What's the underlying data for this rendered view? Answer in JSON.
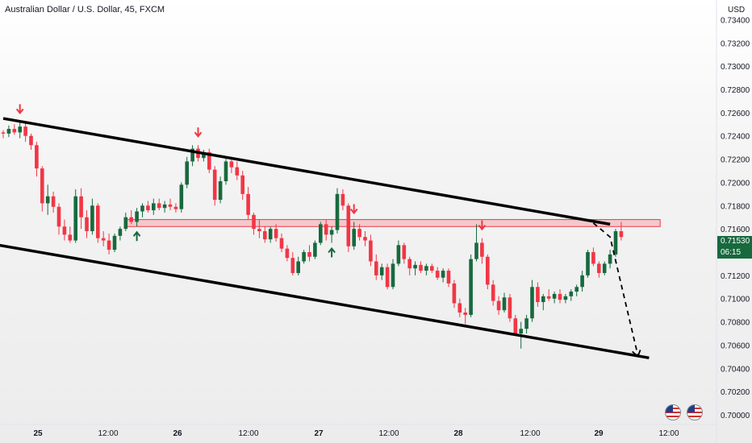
{
  "header": {
    "title": "Australian Dollar / U.S. Dollar, 45, FXCM",
    "unit": "USD"
  },
  "price_tag": {
    "price": "0.71530",
    "countdown": "06:15"
  },
  "colors": {
    "up": "#18693e",
    "down": "#f23645",
    "zone": "#f23645",
    "line": "#000000"
  },
  "icons": [
    "down-arrow-icon",
    "up-arrow-icon",
    "us-flag-icon"
  ],
  "chart_data": {
    "type": "candlestick",
    "ylim": [
      0.7,
      0.735
    ],
    "ytick_labels": [
      "0.73400",
      "0.73200",
      "0.73000",
      "0.72800",
      "0.72600",
      "0.72400",
      "0.72200",
      "0.72000",
      "0.71800",
      "0.71600",
      "0.71400",
      "0.71200",
      "0.71000",
      "0.70800",
      "0.70600",
      "0.70400",
      "0.70200",
      "0.70000"
    ],
    "xtick_labels": [
      "25",
      "12:00",
      "26",
      "12:00",
      "27",
      "12:00",
      "28",
      "12:00",
      "29",
      "12:00"
    ],
    "resistance_zone": [
      0.7162,
      0.7168
    ],
    "channel_upper": [
      [
        0,
        0.7255
      ],
      [
        109,
        0.7164
      ]
    ],
    "channel_lower": [
      [
        -2,
        0.7147
      ],
      [
        116,
        0.7049
      ]
    ],
    "projection": [
      [
        106,
        0.7165
      ],
      [
        109,
        0.7153
      ],
      [
        114,
        0.7051
      ]
    ],
    "down_arrows": [
      3,
      35,
      63,
      86
    ],
    "up_arrows": [
      24,
      59
    ],
    "candles": [
      [
        0.7243,
        0.7245,
        0.7238,
        0.7242
      ],
      [
        0.7242,
        0.7249,
        0.7239,
        0.7246
      ],
      [
        0.7246,
        0.725,
        0.7241,
        0.7243
      ],
      [
        0.7243,
        0.7252,
        0.7238,
        0.7248
      ],
      [
        0.7248,
        0.7251,
        0.7235,
        0.724
      ],
      [
        0.724,
        0.7242,
        0.7228,
        0.7232
      ],
      [
        0.7232,
        0.7235,
        0.7205,
        0.7212
      ],
      [
        0.7212,
        0.7214,
        0.7175,
        0.7182
      ],
      [
        0.7182,
        0.7198,
        0.7172,
        0.7188
      ],
      [
        0.7188,
        0.7192,
        0.7174,
        0.7179
      ],
      [
        0.7179,
        0.7182,
        0.7155,
        0.7162
      ],
      [
        0.7162,
        0.7168,
        0.715,
        0.7155
      ],
      [
        0.7155,
        0.7162,
        0.7148,
        0.715
      ],
      [
        0.715,
        0.7194,
        0.7148,
        0.7188
      ],
      [
        0.7188,
        0.7195,
        0.716,
        0.717
      ],
      [
        0.717,
        0.7176,
        0.7152,
        0.7158
      ],
      [
        0.7158,
        0.7186,
        0.7155,
        0.718
      ],
      [
        0.718,
        0.7182,
        0.7148,
        0.7152
      ],
      [
        0.7152,
        0.7158,
        0.7145,
        0.715
      ],
      [
        0.715,
        0.7156,
        0.7138,
        0.7142
      ],
      [
        0.7142,
        0.7156,
        0.714,
        0.7154
      ],
      [
        0.7154,
        0.7162,
        0.715,
        0.716
      ],
      [
        0.716,
        0.7174,
        0.7158,
        0.717
      ],
      [
        0.717,
        0.7176,
        0.7164,
        0.7166
      ],
      [
        0.7166,
        0.7178,
        0.7162,
        0.7175
      ],
      [
        0.7175,
        0.7182,
        0.717,
        0.718
      ],
      [
        0.718,
        0.7184,
        0.7174,
        0.7176
      ],
      [
        0.7176,
        0.7186,
        0.7172,
        0.7182
      ],
      [
        0.7182,
        0.7186,
        0.7176,
        0.7178
      ],
      [
        0.7178,
        0.7184,
        0.7174,
        0.7181
      ],
      [
        0.7181,
        0.7186,
        0.7176,
        0.7179
      ],
      [
        0.7179,
        0.7182,
        0.7174,
        0.7177
      ],
      [
        0.7177,
        0.72,
        0.7174,
        0.7198
      ],
      [
        0.7198,
        0.7222,
        0.7195,
        0.7218
      ],
      [
        0.7218,
        0.7232,
        0.7214,
        0.7229
      ],
      [
        0.7229,
        0.7232,
        0.7218,
        0.7221
      ],
      [
        0.7221,
        0.7228,
        0.7218,
        0.7226
      ],
      [
        0.7226,
        0.7229,
        0.7208,
        0.7211
      ],
      [
        0.7211,
        0.7214,
        0.718,
        0.7185
      ],
      [
        0.7185,
        0.7205,
        0.7182,
        0.7201
      ],
      [
        0.7201,
        0.7222,
        0.7198,
        0.7218
      ],
      [
        0.7218,
        0.7222,
        0.7208,
        0.7213
      ],
      [
        0.7213,
        0.7218,
        0.7202,
        0.7206
      ],
      [
        0.7206,
        0.721,
        0.7185,
        0.719
      ],
      [
        0.719,
        0.7196,
        0.7168,
        0.7172
      ],
      [
        0.7172,
        0.7174,
        0.7155,
        0.716
      ],
      [
        0.716,
        0.7168,
        0.7152,
        0.7158
      ],
      [
        0.7158,
        0.7162,
        0.7148,
        0.7151
      ],
      [
        0.7151,
        0.7162,
        0.7148,
        0.716
      ],
      [
        0.716,
        0.7164,
        0.7149,
        0.7152
      ],
      [
        0.7152,
        0.7156,
        0.714,
        0.7143
      ],
      [
        0.7143,
        0.7146,
        0.7132,
        0.7135
      ],
      [
        0.7135,
        0.714,
        0.712,
        0.7122
      ],
      [
        0.7122,
        0.7136,
        0.712,
        0.7132
      ],
      [
        0.7132,
        0.7142,
        0.713,
        0.714
      ],
      [
        0.714,
        0.7146,
        0.7132,
        0.7136
      ],
      [
        0.7136,
        0.715,
        0.7134,
        0.7148
      ],
      [
        0.7148,
        0.7166,
        0.7146,
        0.7164
      ],
      [
        0.7164,
        0.7168,
        0.715,
        0.7155
      ],
      [
        0.7155,
        0.7162,
        0.7148,
        0.7159
      ],
      [
        0.7159,
        0.7195,
        0.7156,
        0.719
      ],
      [
        0.719,
        0.7194,
        0.7176,
        0.718
      ],
      [
        0.718,
        0.7182,
        0.714,
        0.7145
      ],
      [
        0.7145,
        0.7166,
        0.7142,
        0.716
      ],
      [
        0.716,
        0.7164,
        0.715,
        0.7153
      ],
      [
        0.7153,
        0.7158,
        0.7145,
        0.715
      ],
      [
        0.715,
        0.7155,
        0.7128,
        0.7132
      ],
      [
        0.7132,
        0.7138,
        0.7116,
        0.712
      ],
      [
        0.712,
        0.713,
        0.7116,
        0.7127
      ],
      [
        0.7127,
        0.713,
        0.7108,
        0.711
      ],
      [
        0.711,
        0.7134,
        0.7108,
        0.713
      ],
      [
        0.713,
        0.715,
        0.7128,
        0.7146
      ],
      [
        0.7146,
        0.7148,
        0.713,
        0.7134
      ],
      [
        0.7134,
        0.7136,
        0.712,
        0.7126
      ],
      [
        0.7126,
        0.7132,
        0.712,
        0.7129
      ],
      [
        0.7129,
        0.7132,
        0.7122,
        0.7124
      ],
      [
        0.7124,
        0.713,
        0.712,
        0.7128
      ],
      [
        0.7128,
        0.713,
        0.7122,
        0.7124
      ],
      [
        0.7124,
        0.7127,
        0.7116,
        0.7118
      ],
      [
        0.7118,
        0.7126,
        0.7114,
        0.7124
      ],
      [
        0.7124,
        0.7126,
        0.711,
        0.7113
      ],
      [
        0.7113,
        0.7116,
        0.7092,
        0.7096
      ],
      [
        0.7096,
        0.71,
        0.7084,
        0.7088
      ],
      [
        0.7088,
        0.7092,
        0.7078,
        0.7086
      ],
      [
        0.7086,
        0.7138,
        0.7084,
        0.7134
      ],
      [
        0.7134,
        0.7164,
        0.7132,
        0.7148
      ],
      [
        0.7148,
        0.7152,
        0.713,
        0.7136
      ],
      [
        0.7136,
        0.7138,
        0.7108,
        0.7112
      ],
      [
        0.7112,
        0.7116,
        0.7094,
        0.7098
      ],
      [
        0.7098,
        0.7102,
        0.7086,
        0.709
      ],
      [
        0.709,
        0.7105,
        0.7088,
        0.7101
      ],
      [
        0.7101,
        0.7104,
        0.708,
        0.7083
      ],
      [
        0.7083,
        0.7086,
        0.7068,
        0.707
      ],
      [
        0.707,
        0.708,
        0.7057,
        0.7074
      ],
      [
        0.7074,
        0.7086,
        0.707,
        0.7083
      ],
      [
        0.7083,
        0.7116,
        0.708,
        0.711
      ],
      [
        0.711,
        0.7114,
        0.7093,
        0.7097
      ],
      [
        0.7097,
        0.7104,
        0.709,
        0.7102
      ],
      [
        0.7102,
        0.7108,
        0.7098,
        0.71
      ],
      [
        0.71,
        0.7106,
        0.7096,
        0.7104
      ],
      [
        0.7104,
        0.7108,
        0.7096,
        0.7099
      ],
      [
        0.7099,
        0.7104,
        0.7096,
        0.7102
      ],
      [
        0.7102,
        0.7108,
        0.7098,
        0.7106
      ],
      [
        0.7106,
        0.7112,
        0.7102,
        0.711
      ],
      [
        0.711,
        0.7124,
        0.7106,
        0.712
      ],
      [
        0.712,
        0.7142,
        0.7118,
        0.714
      ],
      [
        0.714,
        0.7144,
        0.7128,
        0.713
      ],
      [
        0.713,
        0.7132,
        0.7118,
        0.7122
      ],
      [
        0.7122,
        0.7132,
        0.712,
        0.713
      ],
      [
        0.713,
        0.7142,
        0.7126,
        0.7138
      ],
      [
        0.7138,
        0.716,
        0.7136,
        0.7158
      ],
      [
        0.7158,
        0.7166,
        0.715,
        0.7153
      ]
    ]
  }
}
